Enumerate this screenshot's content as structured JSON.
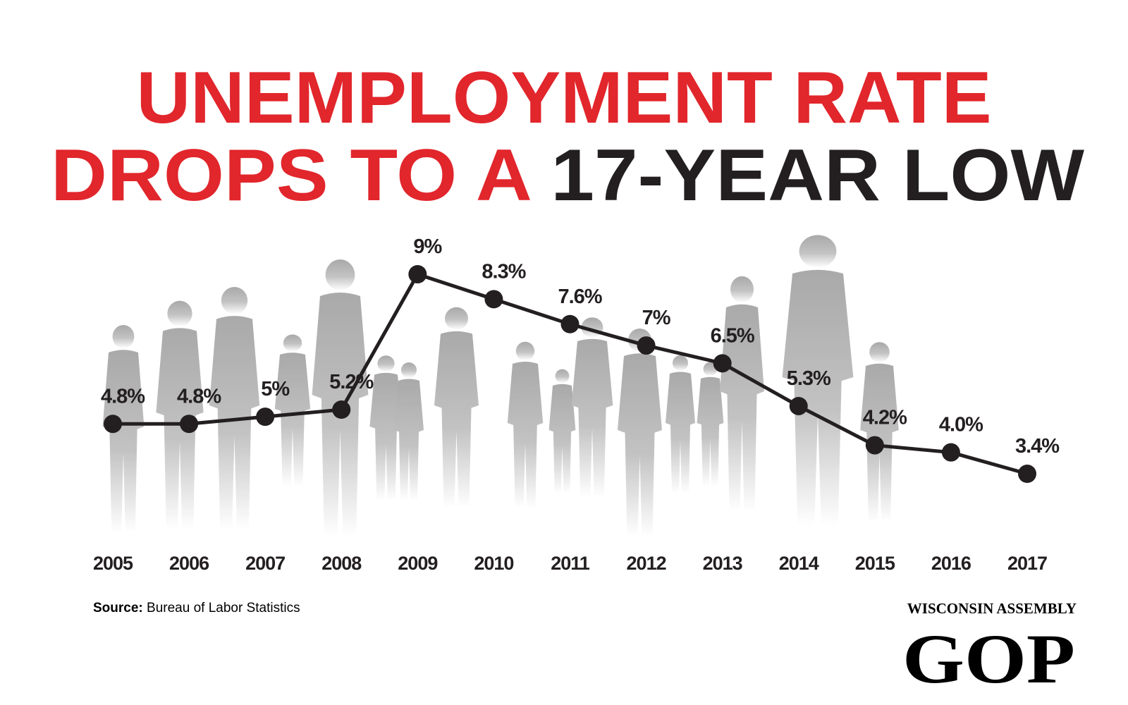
{
  "chart_data": {
    "type": "line",
    "title_line1": "UNEMPLOYMENT RATE",
    "title_line2_red": "DROPS TO A ",
    "title_line2_black": "17-YEAR LOW",
    "title_red_color": "#e1262c",
    "title_black_color": "#231f20",
    "categories": [
      "2005",
      "2006",
      "2007",
      "2008",
      "2009",
      "2010",
      "2011",
      "2012",
      "2013",
      "2014",
      "2015",
      "2016",
      "2017"
    ],
    "values": [
      4.8,
      4.8,
      5,
      5.2,
      9,
      8.3,
      7.6,
      7,
      6.5,
      5.3,
      4.2,
      4.0,
      3.4
    ],
    "value_labels": [
      "4.8%",
      "4.8%",
      "5%",
      "5.2%",
      "9%",
      "8.3%",
      "7.6%",
      "7%",
      "6.5%",
      "5.3%",
      "4.2%",
      "4.0%",
      "3.4%"
    ],
    "color": "#231f20",
    "source_label": "Source:",
    "source_text": "Bureau of Labor Statistics"
  },
  "branding": {
    "line1": "WISCONSIN ASSEMBLY",
    "line2": "GOP"
  }
}
